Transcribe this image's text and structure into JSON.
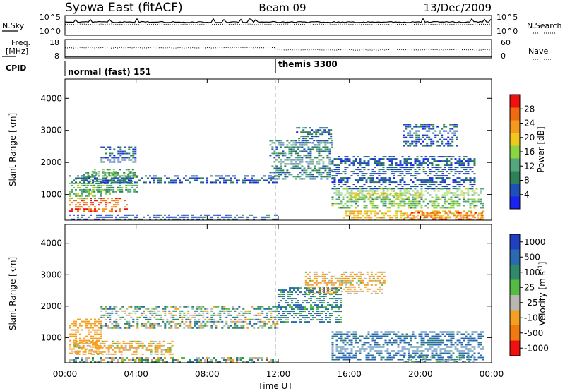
{
  "header": {
    "station": "Syowa East (fitACF)",
    "beam": "Beam 09",
    "date": "13/Dec/2009"
  },
  "noise_panel": {
    "left_label": "N.Sky",
    "left_ticks": [
      "10^5",
      "10^0"
    ],
    "right_label": "N.Search",
    "right_ticks": [
      "10^5",
      "10^0"
    ]
  },
  "freq_panel": {
    "left_label_1": "Freq.",
    "left_label_2": "[MHz]",
    "left_ticks": [
      "18",
      "8"
    ],
    "right_label": "Nave",
    "right_ticks": [
      "60",
      "0"
    ]
  },
  "cpid_panel": {
    "label": "CPID",
    "programs": [
      "normal (fast) 151",
      "themis 3300"
    ],
    "switch_time_hours": 12
  },
  "colors": {
    "power_scale": [
      "#1a22f0",
      "#1f4fb8",
      "#2e7f5a",
      "#53a77a",
      "#8dd442",
      "#f0c81e",
      "#f59a1e",
      "#f06a10",
      "#f01010"
    ],
    "velocity_scale": [
      "#2040c0",
      "#2a6ab0",
      "#2f8a6a",
      "#55bb44",
      "#b8b8b0",
      "#f5a020",
      "#f07a10",
      "#f01010"
    ]
  },
  "chart_data": [
    {
      "type": "heatmap",
      "panel": "power",
      "ylabel": "Slant Range [km]",
      "yticks": [
        "1000",
        "2000",
        "3000",
        "4000"
      ],
      "ylim": [
        200,
        4600
      ],
      "xlim": [
        0,
        24
      ],
      "colorbar_label": "Power [dB]",
      "colorbar_ticks": [
        "4",
        "8",
        "12",
        "16",
        "20",
        "24",
        "28"
      ],
      "colorbar_range": [
        0,
        32
      ],
      "regions": [
        {
          "t0": 0.2,
          "t1": 3.5,
          "r0": 450,
          "r1": 900,
          "value": 27
        },
        {
          "t0": 0.2,
          "t1": 2.5,
          "r0": 900,
          "r1": 1500,
          "value": 15
        },
        {
          "t0": 1.0,
          "t1": 4.0,
          "r0": 1100,
          "r1": 1700,
          "value": 12
        },
        {
          "t0": 0.2,
          "t1": 12.0,
          "r0": 1380,
          "r1": 1600,
          "value": 6
        },
        {
          "t0": 1.5,
          "t1": 4.0,
          "r0": 1600,
          "r1": 1800,
          "value": 13
        },
        {
          "t0": 2.0,
          "t1": 4.0,
          "r0": 2000,
          "r1": 2500,
          "value": 6
        },
        {
          "t0": 0.2,
          "t1": 12.0,
          "r0": 200,
          "r1": 380,
          "value": 6
        },
        {
          "t0": 11.5,
          "t1": 15.0,
          "r0": 1500,
          "r1": 2700,
          "value": 9
        },
        {
          "t0": 13.0,
          "t1": 15.0,
          "r0": 2600,
          "r1": 3100,
          "value": 7
        },
        {
          "t0": 15.0,
          "t1": 23.5,
          "r0": 600,
          "r1": 1200,
          "value": 14
        },
        {
          "t0": 16.0,
          "t1": 20.0,
          "r0": 900,
          "r1": 1050,
          "value": 19
        },
        {
          "t0": 15.5,
          "t1": 23.5,
          "r0": 200,
          "r1": 500,
          "value": 21
        },
        {
          "t0": 19.0,
          "t1": 23.5,
          "r0": 250,
          "r1": 450,
          "value": 27
        },
        {
          "t0": 15.0,
          "t1": 23.0,
          "r0": 1200,
          "r1": 2200,
          "value": 6
        },
        {
          "t0": 19.0,
          "t1": 22.0,
          "r0": 2500,
          "r1": 3200,
          "value": 6
        }
      ]
    },
    {
      "type": "heatmap",
      "panel": "velocity",
      "ylabel": "Slant Range [km]",
      "yticks": [
        "1000",
        "2000",
        "3000",
        "4000"
      ],
      "ylim": [
        200,
        4600
      ],
      "xlabel": "Time UT",
      "xticks": [
        "00:00",
        "04:00",
        "08:00",
        "12:00",
        "16:00",
        "20:00",
        "00:00"
      ],
      "xlim": [
        0,
        24
      ],
      "colorbar_label": "Velocity [m s",
      "colorbar_label_superscript": "-1",
      "colorbar_label_close": "]",
      "colorbar_ticks": [
        "1000",
        "500",
        "100",
        "25",
        "-25",
        "-100",
        "-500",
        "-1000"
      ],
      "regions": [
        {
          "t0": 0.2,
          "t1": 2.0,
          "r0": 500,
          "r1": 1600,
          "value": -300
        },
        {
          "t0": 0.5,
          "t1": 6.0,
          "r0": 450,
          "r1": 900,
          "value": -150
        },
        {
          "t0": 2.0,
          "t1": 12.0,
          "r0": 1300,
          "r1": 2000,
          "value": 0
        },
        {
          "t0": 0.2,
          "t1": 12.0,
          "r0": 200,
          "r1": 380,
          "value": 0
        },
        {
          "t0": 12.0,
          "t1": 15.5,
          "r0": 1500,
          "r1": 2600,
          "value": 120
        },
        {
          "t0": 15.0,
          "t1": 23.5,
          "r0": 300,
          "r1": 1200,
          "value": 200
        },
        {
          "t0": 19.0,
          "t1": 23.0,
          "r0": 200,
          "r1": 400,
          "value": 80
        },
        {
          "t0": 13.5,
          "t1": 18.0,
          "r0": 2400,
          "r1": 3100,
          "value": -150
        }
      ]
    }
  ]
}
